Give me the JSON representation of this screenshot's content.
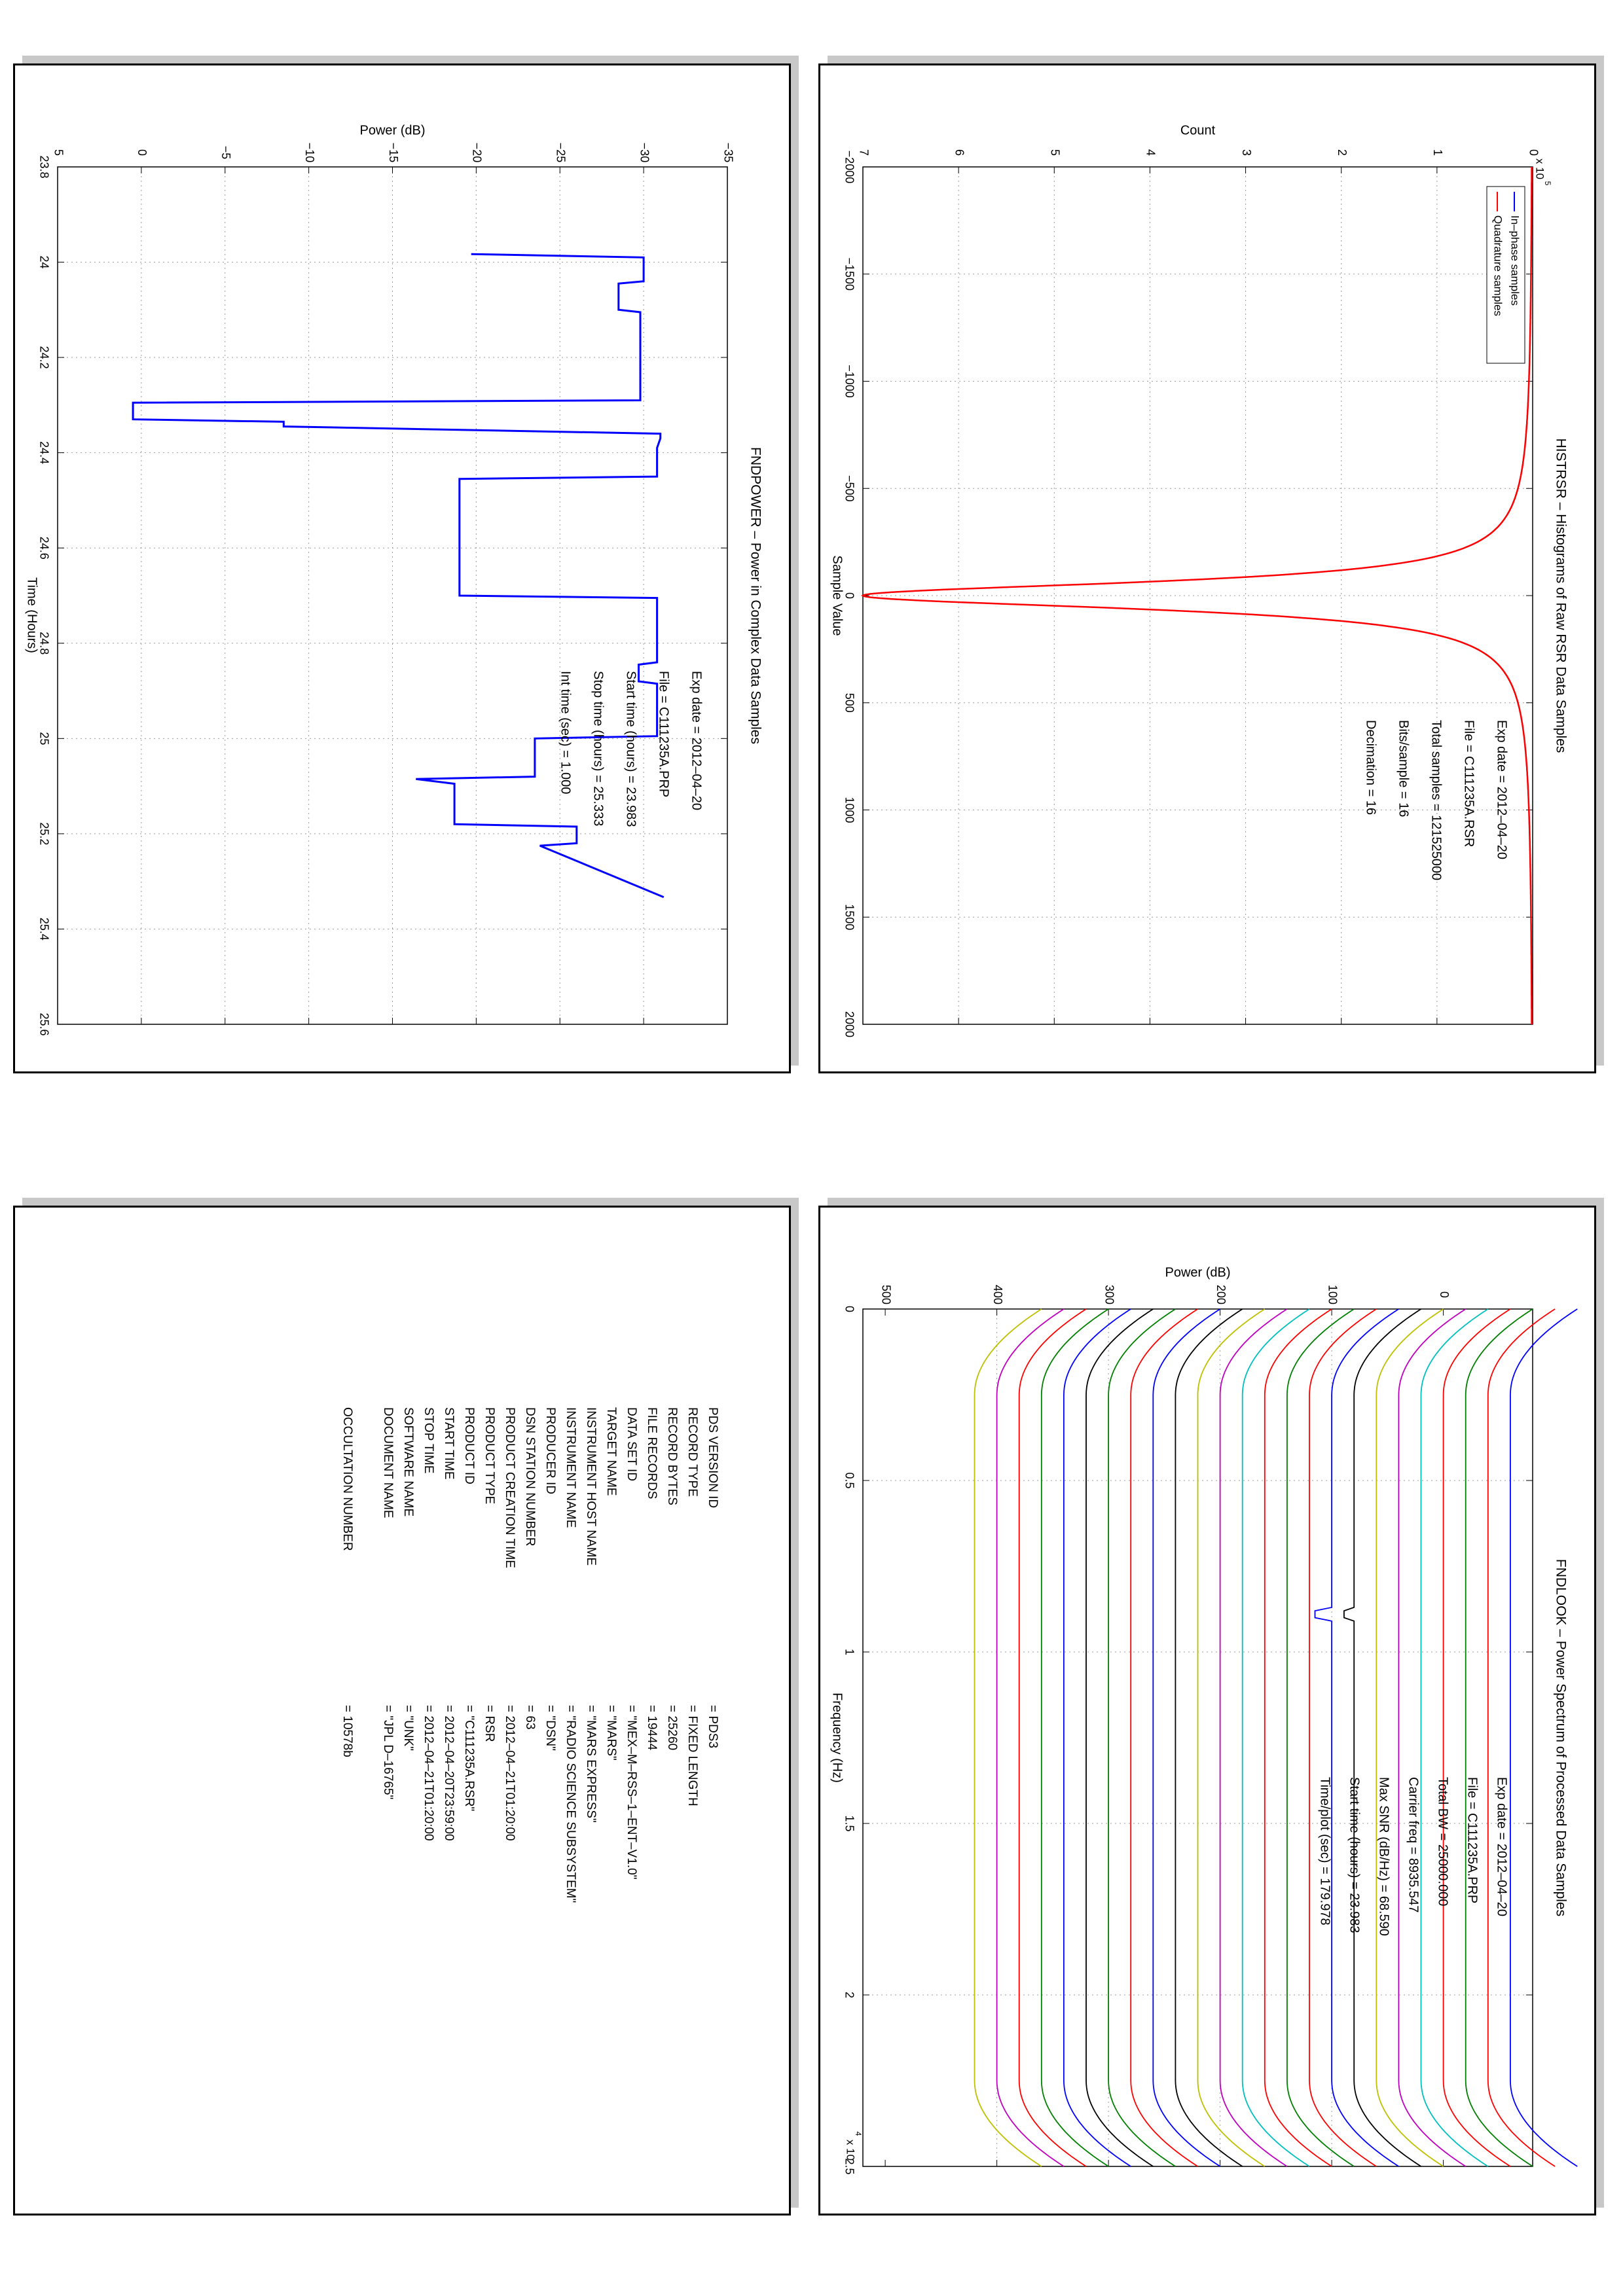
{
  "page": {
    "background": "#ffffff",
    "panel_shadow_color": "#c8c8c8"
  },
  "panels": {
    "histogram": {
      "title": "HISTRSR – Histograms of Raw RSR Data Samples",
      "info": [
        "Exp date = 2012–04–20",
        "File = C111235A.RSR",
        "Total samples =  121525000",
        "Bits/sample    =       16",
        "Decimation    =       16"
      ]
    },
    "power": {
      "title": "FNDPOWER – Power in Complex Data Samples",
      "info": [
        "Exp date = 2012–04–20",
        "File = C111235A.PRP",
        "Start time (hours) = 23.983",
        "Stop time (hours) =  25.333",
        "Int time (sec) =     1.000"
      ]
    },
    "spectrum": {
      "title": "FNDLOOK – Power Spectrum of Processed Data Samples",
      "info": [
        "Exp date = 2012–04–20",
        "File = C111235A.PRP",
        "Total BW =     25000.000",
        "Carrier freq =   8935.547",
        "Max SNR (dB/Hz) =    68.590",
        "Start time (hours) =  23.983",
        "Time/plot (sec) =   179.978"
      ]
    },
    "label": {
      "rows": [
        {
          "key": "PDS VERSION ID",
          "value": "=   PDS3"
        },
        {
          "key": "RECORD TYPE",
          "value": "=   FIXED LENGTH"
        },
        {
          "key": "RECORD BYTES",
          "value": "=   25260"
        },
        {
          "key": "FILE RECORDS",
          "value": "=   19444"
        },
        {
          "key": "DATA SET ID",
          "value": "=   \"MEX–M–RSS–1–ENT–V1.0\""
        },
        {
          "key": "TARGET NAME",
          "value": "=   \"MARS\""
        },
        {
          "key": "INSTRUMENT HOST NAME",
          "value": "=   \"MARS EXPRESS\""
        },
        {
          "key": "INSTRUMENT NAME",
          "value": "=   \"RADIO SCIENCE SUBSYSTEM\""
        },
        {
          "key": "PRODUCER ID",
          "value": "=   \"DSN\""
        },
        {
          "key": "DSN STATION NUMBER",
          "value": "=   63"
        },
        {
          "key": "PRODUCT CREATION TIME",
          "value": "=   2012–04–21T01:20:00"
        },
        {
          "key": "PRODUCT TYPE",
          "value": "=   RSR"
        },
        {
          "key": "PRODUCT ID",
          "value": "=   \"C111235A.RSR\""
        },
        {
          "key": "START TIME",
          "value": "=   2012–04–20T23:59:00"
        },
        {
          "key": "STOP TIME",
          "value": "=   2012–04–21T01:20:00"
        },
        {
          "key": "SOFTWARE NAME",
          "value": "=   \"UNK\""
        },
        {
          "key": "DOCUMENT NAME",
          "value": "=   \"JPL D–16765\""
        },
        {
          "key": "",
          "value": ""
        },
        {
          "key": "OCCULTATION NUMBER",
          "value": "=   10578b"
        }
      ]
    }
  },
  "chart_data": [
    {
      "id": "histogram",
      "type": "line",
      "title": "HISTRSR – Histograms of Raw RSR Data Samples",
      "xlabel": "Sample Value",
      "ylabel": "Count",
      "y_multiplier_label": "x 10^5",
      "xlim": [
        -2000,
        2000
      ],
      "ylim": [
        0,
        7
      ],
      "x_ticks": [
        -2000,
        -1500,
        -1000,
        -500,
        0,
        500,
        1000,
        1500,
        2000
      ],
      "y_ticks": [
        0,
        1,
        2,
        3,
        4,
        5,
        6,
        7
      ],
      "grid": true,
      "legend_position": "top-left",
      "series": [
        {
          "name": "In–phase samples",
          "color": "#0000ff",
          "model": "lorentzian",
          "peak": 7.0,
          "center": 0,
          "half_width": 75
        },
        {
          "name": "Quadrature samples",
          "color": "#ff0000",
          "model": "lorentzian",
          "peak": 7.0,
          "center": 0,
          "half_width": 75
        }
      ]
    },
    {
      "id": "power",
      "type": "line",
      "title": "FNDPOWER – Power in Complex Data Samples",
      "xlabel": "Time (Hours)",
      "ylabel": "Power (dB)",
      "xlim": [
        23.8,
        25.6
      ],
      "ylim": [
        -35,
        5
      ],
      "x_ticks": [
        23.8,
        24,
        24.2,
        24.4,
        24.6,
        24.8,
        25,
        25.2,
        25.4,
        25.6
      ],
      "y_ticks": [
        -35,
        -30,
        -25,
        -20,
        -15,
        -10,
        -5,
        0,
        5
      ],
      "grid": true,
      "series": [
        {
          "name": "",
          "color": "#0000ff",
          "x": [
            23.983,
            23.99,
            24.04,
            24.045,
            24.1,
            24.105,
            24.29,
            24.295,
            24.33,
            24.335,
            24.345,
            24.36,
            24.37,
            24.39,
            24.45,
            24.455,
            24.7,
            24.705,
            24.84,
            24.845,
            24.88,
            24.885,
            24.995,
            25.0,
            25.08,
            25.085,
            25.095,
            25.1,
            25.18,
            25.185,
            25.22,
            25.225,
            25.333
          ],
          "y": [
            -19.7,
            -30.0,
            -30.0,
            -28.5,
            -28.5,
            -29.8,
            -29.8,
            0.5,
            0.5,
            -8.5,
            -8.5,
            -31.0,
            -31.0,
            -30.8,
            -30.8,
            -19.0,
            -19.0,
            -30.8,
            -30.8,
            -29.7,
            -29.7,
            -30.8,
            -30.8,
            -23.5,
            -23.5,
            -16.4,
            -18.7,
            -18.7,
            -18.7,
            -26.0,
            -26.0,
            -23.8,
            -31.2
          ]
        }
      ]
    },
    {
      "id": "spectrum",
      "type": "line",
      "title": "FNDLOOK – Power Spectrum of Processed Data Samples",
      "xlabel": "Frequency (Hz)",
      "ylabel": "Power (dB)",
      "x_multiplier_label": "x 10^4",
      "xlim": [
        0,
        25000
      ],
      "ylim": [
        -80,
        520
      ],
      "x_ticks": [
        0,
        5000,
        10000,
        15000,
        20000,
        25000
      ],
      "x_tick_labels": [
        "0",
        "0.5",
        "1",
        "1.5",
        "2",
        "2.5"
      ],
      "y_ticks": [
        0,
        100,
        200,
        300,
        400,
        500
      ],
      "grid": true,
      "series": [
        {
          "name": "",
          "color": "#0000ff",
          "offset": -60
        },
        {
          "name": "",
          "color": "#ff0000",
          "offset": -40
        },
        {
          "name": "",
          "color": "#008000",
          "offset": -20
        },
        {
          "name": "",
          "color": "#ff0000",
          "offset": 0
        },
        {
          "name": "",
          "color": "#00bfbf",
          "offset": 20
        },
        {
          "name": "",
          "color": "#bf00bf",
          "offset": 40
        },
        {
          "name": "",
          "color": "#bfbf00",
          "offset": 60
        },
        {
          "name": "",
          "color": "#000000",
          "offset": 80,
          "line_at_carrier": 3
        },
        {
          "name": "",
          "color": "#0000ff",
          "offset": 100,
          "line_at_carrier": 5
        },
        {
          "name": "",
          "color": "#ff0000",
          "offset": 120
        },
        {
          "name": "",
          "color": "#008000",
          "offset": 140
        },
        {
          "name": "",
          "color": "#ff0000",
          "offset": 160
        },
        {
          "name": "",
          "color": "#00bfbf",
          "offset": 180
        },
        {
          "name": "",
          "color": "#bf00bf",
          "offset": 200
        },
        {
          "name": "",
          "color": "#bfbf00",
          "offset": 220
        },
        {
          "name": "",
          "color": "#000000",
          "offset": 240
        },
        {
          "name": "",
          "color": "#0000ff",
          "offset": 260
        },
        {
          "name": "",
          "color": "#ff0000",
          "offset": 280
        },
        {
          "name": "",
          "color": "#008000",
          "offset": 300
        },
        {
          "name": "",
          "color": "#000000",
          "offset": 320
        },
        {
          "name": "",
          "color": "#0000ff",
          "offset": 340
        },
        {
          "name": "",
          "color": "#008000",
          "offset": 360
        },
        {
          "name": "",
          "color": "#ff0000",
          "offset": 380
        },
        {
          "name": "",
          "color": "#bf00bf",
          "offset": 400
        },
        {
          "name": "",
          "color": "#bfbf00",
          "offset": 420
        }
      ]
    }
  ]
}
